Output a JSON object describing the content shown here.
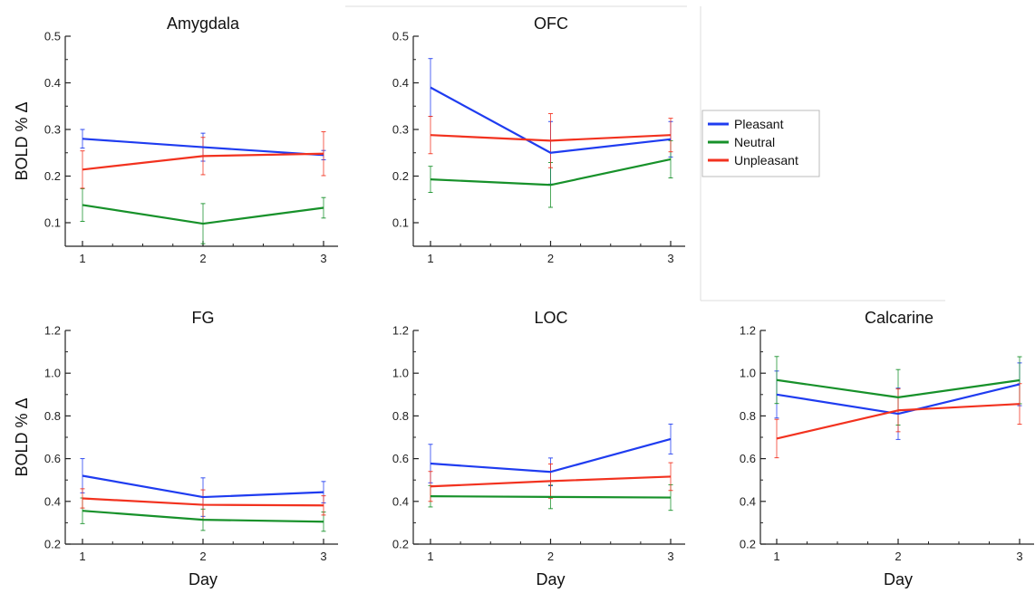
{
  "series_colors": {
    "Pleasant": "#1f3cf0",
    "Neutral": "#17912a",
    "Unpleasant": "#f2321f"
  },
  "legend": {
    "items": [
      "Pleasant",
      "Neutral",
      "Unpleasant"
    ]
  },
  "chart_data": [
    {
      "type": "line",
      "title": "Amygdala",
      "xlabel": "",
      "ylabel": "BOLD % Δ",
      "x": [
        1,
        2,
        3
      ],
      "ylim": [
        0.05,
        0.5
      ],
      "yticks": [
        "0.1",
        "0.2",
        "0.3",
        "0.4",
        "0.5"
      ],
      "series": [
        {
          "name": "Pleasant",
          "values": [
            0.28,
            0.262,
            0.245
          ],
          "errors": [
            0.02,
            0.03,
            0.01
          ]
        },
        {
          "name": "Neutral",
          "values": [
            0.138,
            0.098,
            0.132
          ],
          "errors": [
            0.035,
            0.043,
            0.022
          ]
        },
        {
          "name": "Unpleasant",
          "values": [
            0.214,
            0.243,
            0.248
          ],
          "errors": [
            0.04,
            0.04,
            0.047
          ]
        }
      ]
    },
    {
      "type": "line",
      "title": "OFC",
      "xlabel": "",
      "ylabel": "",
      "x": [
        1,
        2,
        3
      ],
      "ylim": [
        0.05,
        0.5
      ],
      "yticks": [
        "0.1",
        "0.2",
        "0.3",
        "0.4",
        "0.5"
      ],
      "series": [
        {
          "name": "Pleasant",
          "values": [
            0.39,
            0.25,
            0.279
          ],
          "errors": [
            0.062,
            0.067,
            0.038
          ]
        },
        {
          "name": "Neutral",
          "values": [
            0.193,
            0.181,
            0.236
          ],
          "errors": [
            0.028,
            0.048,
            0.04
          ]
        },
        {
          "name": "Unpleasant",
          "values": [
            0.288,
            0.276,
            0.288
          ],
          "errors": [
            0.04,
            0.058,
            0.036
          ]
        }
      ]
    },
    {
      "type": "line",
      "title": "FG",
      "xlabel": "Day",
      "ylabel": "BOLD % Δ",
      "x": [
        1,
        2,
        3
      ],
      "ylim": [
        0.2,
        1.2
      ],
      "yticks": [
        "0.2",
        "0.4",
        "0.6",
        "0.8",
        "1.0",
        "1.2"
      ],
      "series": [
        {
          "name": "Pleasant",
          "values": [
            0.52,
            0.42,
            0.443
          ],
          "errors": [
            0.08,
            0.09,
            0.05
          ]
        },
        {
          "name": "Neutral",
          "values": [
            0.356,
            0.314,
            0.305
          ],
          "errors": [
            0.06,
            0.05,
            0.045
          ]
        },
        {
          "name": "Unpleasant",
          "values": [
            0.414,
            0.384,
            0.381
          ],
          "errors": [
            0.045,
            0.07,
            0.045
          ]
        }
      ]
    },
    {
      "type": "line",
      "title": "LOC",
      "xlabel": "Day",
      "ylabel": "",
      "x": [
        1,
        2,
        3
      ],
      "ylim": [
        0.2,
        1.2
      ],
      "yticks": [
        "0.2",
        "0.4",
        "0.6",
        "0.8",
        "1.0",
        "1.2"
      ],
      "series": [
        {
          "name": "Pleasant",
          "values": [
            0.577,
            0.538,
            0.692
          ],
          "errors": [
            0.09,
            0.065,
            0.07
          ]
        },
        {
          "name": "Neutral",
          "values": [
            0.424,
            0.421,
            0.418
          ],
          "errors": [
            0.05,
            0.055,
            0.06
          ]
        },
        {
          "name": "Unpleasant",
          "values": [
            0.47,
            0.495,
            0.516
          ],
          "errors": [
            0.07,
            0.08,
            0.065
          ]
        }
      ]
    },
    {
      "type": "line",
      "title": "Calcarine",
      "xlabel": "Day",
      "ylabel": "",
      "x": [
        1,
        2,
        3
      ],
      "ylim": [
        0.2,
        1.2
      ],
      "yticks": [
        "0.2",
        "0.4",
        "0.6",
        "0.8",
        "1.0",
        "1.2"
      ],
      "series": [
        {
          "name": "Pleasant",
          "values": [
            0.9,
            0.81,
            0.948
          ],
          "errors": [
            0.11,
            0.12,
            0.1
          ]
        },
        {
          "name": "Neutral",
          "values": [
            0.968,
            0.887,
            0.967
          ],
          "errors": [
            0.11,
            0.13,
            0.11
          ]
        },
        {
          "name": "Unpleasant",
          "values": [
            0.694,
            0.826,
            0.856
          ],
          "errors": [
            0.09,
            0.1,
            0.095
          ]
        }
      ]
    }
  ]
}
